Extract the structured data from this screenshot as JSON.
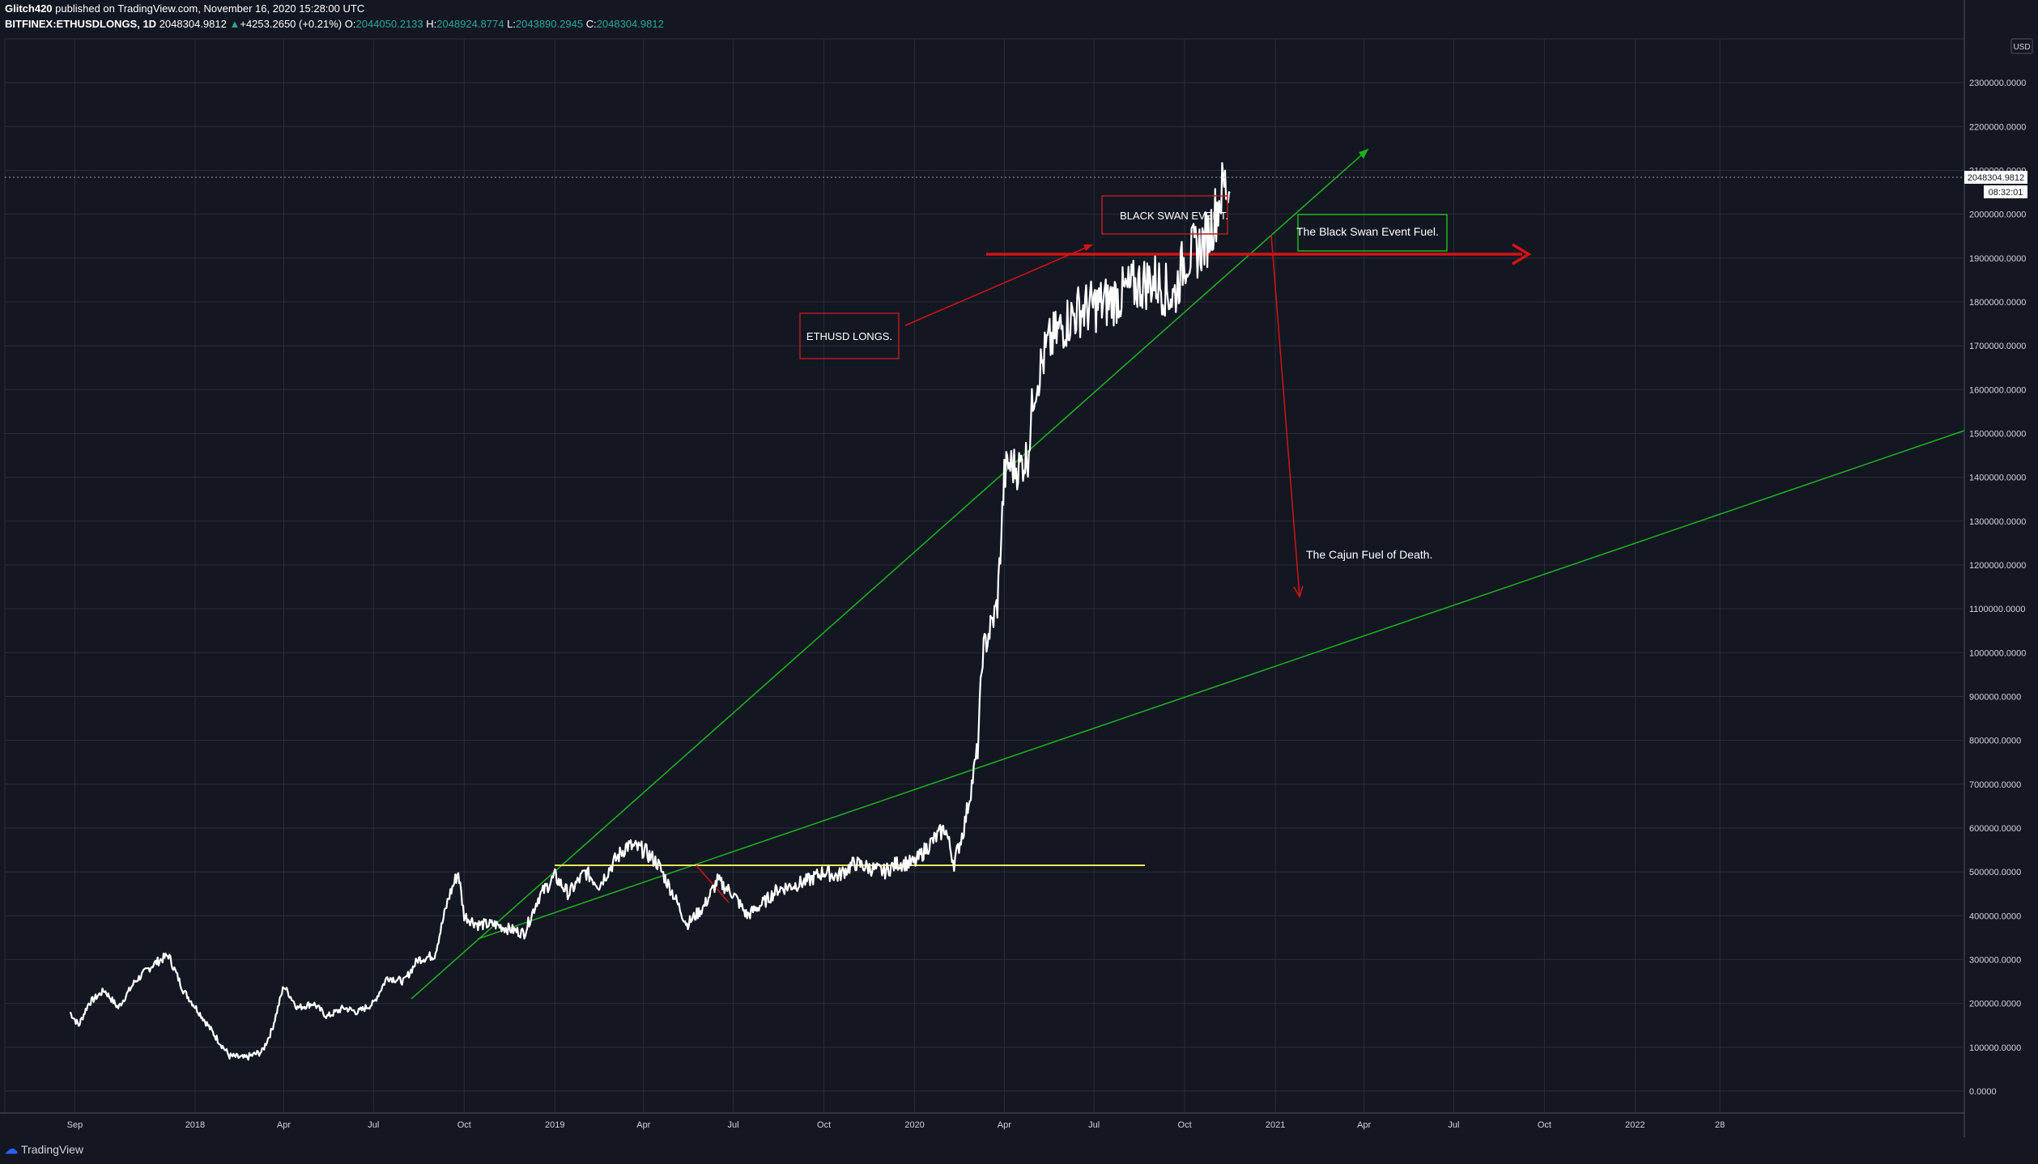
{
  "header": {
    "author": "Glitch420",
    "published_text": "published on TradingView.com, November 16, 2020 15:28:00 UTC",
    "symbol": "BITFINEX:ETHUSDLONGS, 1D",
    "last_price": "2048304.9812",
    "change_arrow": "▲",
    "change": "+4253.2650 (+0.21%)",
    "open_label": "O:",
    "open": "2044050.2133",
    "high_label": "H:",
    "high": "2048924.8774",
    "low_label": "L:",
    "low": "2043890.2945",
    "close_label": "C:",
    "close": "2048304.9812"
  },
  "footer": {
    "brand": "TradingView"
  },
  "colors": {
    "background": "#131722",
    "grid": "#2a2e39",
    "price_line": "#ffffff",
    "green_line": "#1eb31e",
    "red_line": "#d31414",
    "yellow_line": "#e8e85a",
    "label_box_red": "#b71c1c",
    "label_box_green": "#1eb31e"
  },
  "chart_data": {
    "type": "line",
    "title": "",
    "xlabel": "",
    "ylabel": "",
    "currency": "USD",
    "current_price_label": "2048304.9812",
    "countdown_label": "08:32:01",
    "ylim": [
      -50000,
      2400000
    ],
    "y_ticks": [
      0,
      100000,
      200000,
      300000,
      400000,
      500000,
      600000,
      700000,
      800000,
      900000,
      1000000,
      1100000,
      1200000,
      1300000,
      1400000,
      1500000,
      1600000,
      1700000,
      1800000,
      1900000,
      2000000,
      2100000,
      2200000,
      2300000
    ],
    "y_tick_labels": [
      "0.0000",
      "100000.0000",
      "200000.0000",
      "300000.0000",
      "400000.0000",
      "500000.0000",
      "600000.0000",
      "700000.0000",
      "800000.0000",
      "900000.0000",
      "1000000.0000",
      "1100000.0000",
      "1200000.0000",
      "1300000.0000",
      "1400000.0000",
      "1500000.0000",
      "1600000.0000",
      "1700000.0000",
      "1800000.0000",
      "1900000.0000",
      "2000000.0000",
      "2100000.0000",
      "2200000.0000",
      "2300000.0000"
    ],
    "x_ticks": [
      "2017-09-01",
      "2018-01-01",
      "2018-04-01",
      "2018-07-01",
      "2018-10-01",
      "2019-01-01",
      "2019-04-01",
      "2019-07-01",
      "2019-10-01",
      "2020-01-01",
      "2020-04-01",
      "2020-07-01",
      "2020-10-01",
      "2021-01-01",
      "2021-04-01",
      "2021-07-01",
      "2021-10-01",
      "2022-01-01",
      "2022-03-28"
    ],
    "x_tick_labels": [
      "Sep",
      "2018",
      "Apr",
      "Jul",
      "Oct",
      "2019",
      "Apr",
      "Jul",
      "Oct",
      "2020",
      "Apr",
      "Jul",
      "Oct",
      "2021",
      "Apr",
      "Jul",
      "Oct",
      "2022",
      "28"
    ],
    "xlim": [
      "2017-06-22",
      "2022-12-01"
    ],
    "series": [
      {
        "x": [
          "2017-08-27",
          "2017-09-05",
          "2017-09-15",
          "2017-10-01",
          "2017-10-15",
          "2017-11-01",
          "2017-11-20",
          "2017-12-05",
          "2017-12-20",
          "2018-01-05",
          "2018-01-20",
          "2018-02-05",
          "2018-02-20",
          "2018-03-10",
          "2018-03-20",
          "2018-04-01",
          "2018-04-15",
          "2018-05-01",
          "2018-05-15",
          "2018-06-01",
          "2018-06-15",
          "2018-07-01",
          "2018-07-15",
          "2018-08-01",
          "2018-08-15",
          "2018-09-01",
          "2018-09-15",
          "2018-09-25",
          "2018-10-01",
          "2018-10-15",
          "2018-11-01",
          "2018-11-15",
          "2018-12-01",
          "2018-12-15",
          "2019-01-01",
          "2019-01-15",
          "2019-02-01",
          "2019-02-15",
          "2019-03-01",
          "2019-03-15",
          "2019-04-01",
          "2019-04-15",
          "2019-05-01",
          "2019-05-15",
          "2019-06-01",
          "2019-06-15",
          "2019-07-01",
          "2019-07-15",
          "2019-08-01",
          "2019-08-15",
          "2019-09-01",
          "2019-09-15",
          "2019-10-01",
          "2019-10-15",
          "2019-11-01",
          "2019-11-15",
          "2019-12-01",
          "2019-12-15",
          "2020-01-01",
          "2020-01-15",
          "2020-02-01",
          "2020-02-10",
          "2020-02-20",
          "2020-02-28",
          "2020-03-05",
          "2020-03-10",
          "2020-03-20",
          "2020-03-25",
          "2020-04-01",
          "2020-04-05",
          "2020-04-15",
          "2020-04-25",
          "2020-05-01",
          "2020-05-05",
          "2020-05-15",
          "2020-06-01",
          "2020-06-15",
          "2020-07-01",
          "2020-07-15",
          "2020-08-01",
          "2020-08-15",
          "2020-09-01",
          "2020-09-10",
          "2020-09-20",
          "2020-10-01",
          "2020-10-15",
          "2020-10-25",
          "2020-11-01",
          "2020-11-10",
          "2020-11-16"
        ],
        "values": [
          180000,
          150000,
          200000,
          230000,
          190000,
          250000,
          290000,
          310000,
          230000,
          180000,
          130000,
          80000,
          75000,
          90000,
          140000,
          240000,
          190000,
          200000,
          170000,
          190000,
          180000,
          200000,
          260000,
          250000,
          300000,
          310000,
          440000,
          500000,
          400000,
          380000,
          380000,
          370000,
          360000,
          440000,
          490000,
          450000,
          500000,
          470000,
          520000,
          560000,
          550000,
          520000,
          450000,
          380000,
          420000,
          480000,
          450000,
          400000,
          430000,
          460000,
          470000,
          480000,
          500000,
          490000,
          520000,
          510000,
          500000,
          520000,
          520000,
          560000,
          600000,
          520000,
          600000,
          700000,
          780000,
          1000000,
          1070000,
          1110000,
          1400000,
          1430000,
          1420000,
          1450000,
          1600000,
          1630000,
          1700000,
          1750000,
          1780000,
          1790000,
          1800000,
          1820000,
          1840000,
          1850000,
          1830000,
          1810000,
          1900000,
          1920000,
          1950000,
          2000000,
          2070000,
          2048305
        ]
      }
    ],
    "annotations": [
      {
        "type": "box-label",
        "text": "ETHUSD LONGS.",
        "border": "red"
      },
      {
        "type": "box-label",
        "text": "BLACK SWAN EVENT.",
        "border": "red"
      },
      {
        "type": "box-label",
        "text": "The Black Swan Event Fuel.",
        "border": "green"
      },
      {
        "type": "text",
        "text": "The Cajun Fuel of Death."
      }
    ],
    "grid": true
  }
}
